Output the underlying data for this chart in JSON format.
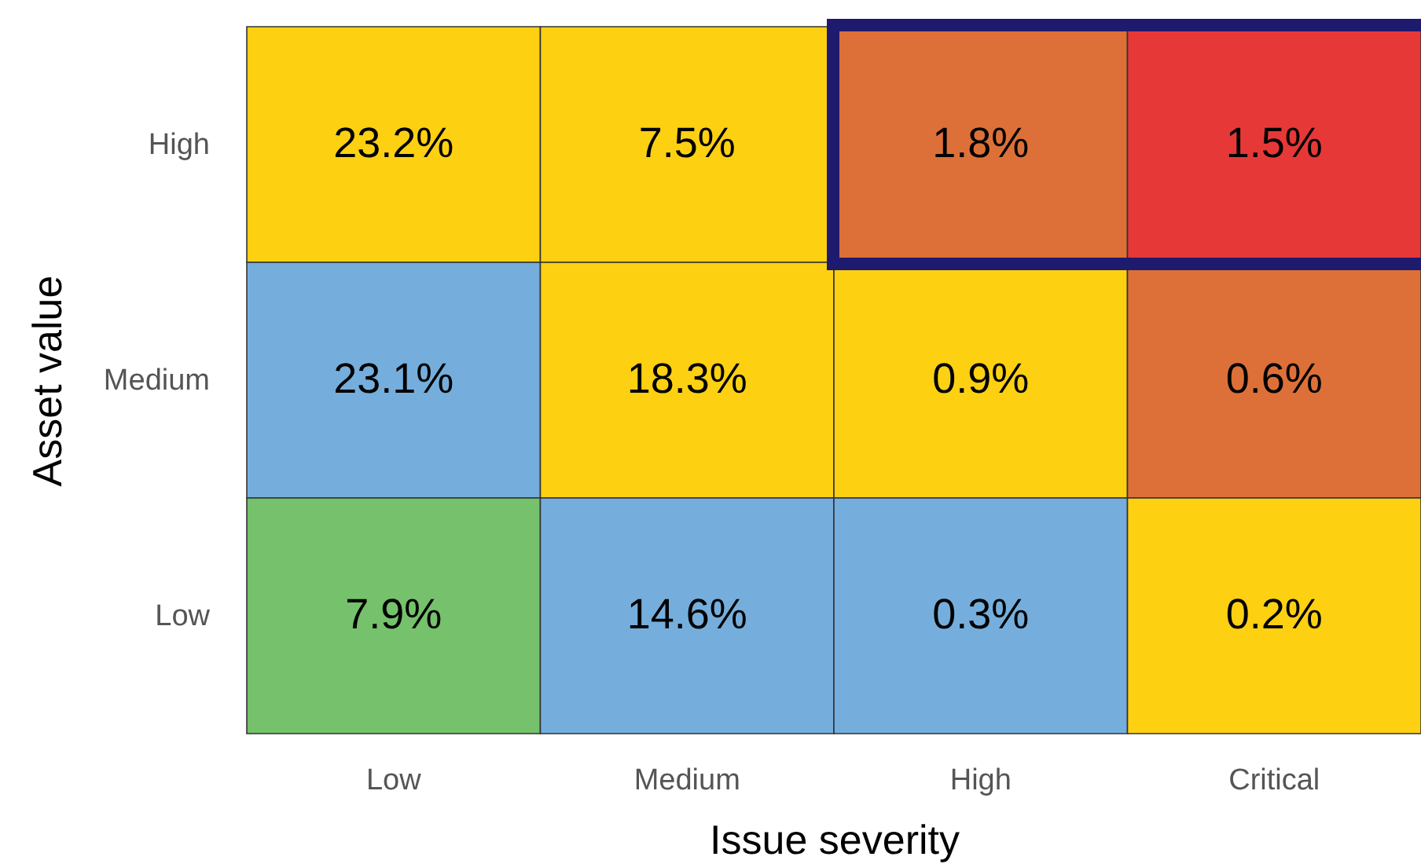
{
  "chart_data": {
    "type": "heatmap",
    "xlabel": "Issue severity",
    "ylabel": "Asset value",
    "categories": [
      "Low",
      "Medium",
      "High",
      "Critical"
    ],
    "y_categories": [
      "High",
      "Medium",
      "Low"
    ],
    "cells": [
      [
        23.2,
        7.5,
        1.8,
        1.5
      ],
      [
        23.1,
        18.3,
        0.9,
        0.6
      ],
      [
        7.9,
        14.6,
        0.3,
        0.2
      ]
    ],
    "cell_labels": [
      [
        "23.2%",
        "7.5%",
        "1.8%",
        "1.5%"
      ],
      [
        "23.1%",
        "18.3%",
        "0.9%",
        "0.6%"
      ],
      [
        "7.9%",
        "14.6%",
        "0.3%",
        "0.2%"
      ]
    ],
    "colors": [
      [
        "#fdd012",
        "#fdd012",
        "#dd7038",
        "#e73838"
      ],
      [
        "#75aedc",
        "#fdd012",
        "#fdd012",
        "#dd7038"
      ],
      [
        "#76c16b",
        "#75aedc",
        "#75aedc",
        "#fdd012"
      ]
    ]
  }
}
